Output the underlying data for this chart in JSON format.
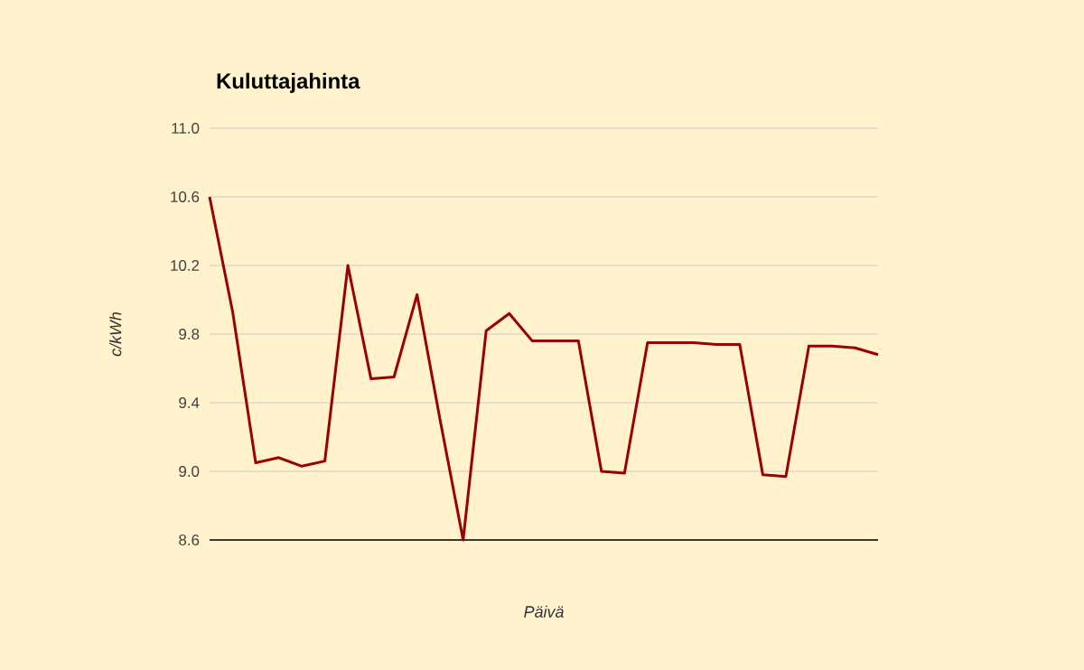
{
  "chart_data": {
    "type": "line",
    "title": "Kuluttajahinta",
    "xlabel": "Päivä",
    "ylabel": "c/kWh",
    "categories": [
      null,
      null,
      null,
      null,
      null,
      null,
      null,
      null,
      null,
      null,
      null,
      null,
      null,
      null,
      null,
      null,
      null,
      null,
      null,
      null,
      null,
      null,
      null,
      null,
      null,
      null,
      null,
      null,
      null,
      null
    ],
    "series": [
      {
        "color": "#990000",
        "values": [
          10.6,
          9.93,
          9.05,
          9.08,
          9.03,
          9.06,
          10.2,
          9.54,
          9.55,
          10.03,
          9.3,
          8.6,
          9.82,
          9.92,
          9.76,
          9.76,
          9.76,
          9.0,
          8.99,
          9.75,
          9.75,
          9.75,
          9.74,
          9.74,
          8.98,
          8.97,
          9.73,
          9.73,
          9.72,
          9.68
        ]
      }
    ],
    "ylim": [
      8.6,
      11.0
    ],
    "yticks": [
      {
        "value": 8.6,
        "label": "8.6"
      },
      {
        "value": 9.0,
        "label": "9.0"
      },
      {
        "value": 9.4,
        "label": "9.4"
      },
      {
        "value": 9.8,
        "label": "9.8"
      },
      {
        "value": 10.2,
        "label": "10.2"
      },
      {
        "value": 10.6,
        "label": "10.6"
      },
      {
        "value": 11.0,
        "label": "11.0"
      }
    ],
    "grid": "y"
  }
}
